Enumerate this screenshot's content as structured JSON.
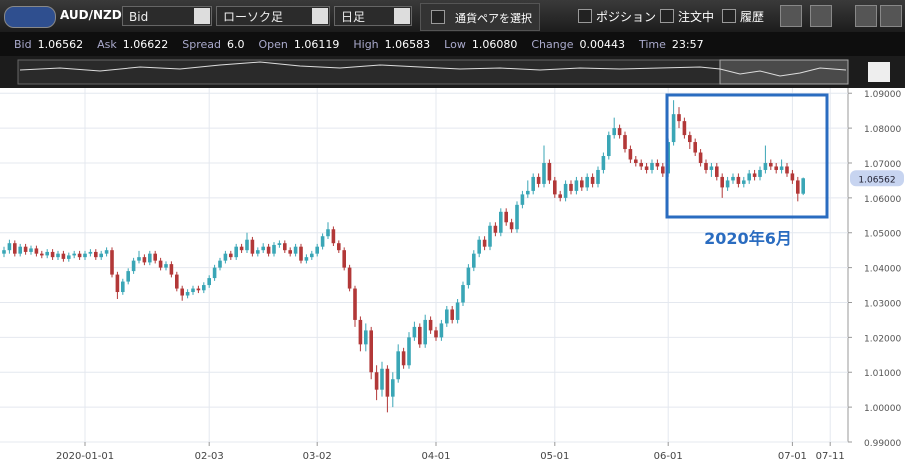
{
  "toolbar": {
    "symbol": "AUD/NZD",
    "price_side": "Bid",
    "chart_kind": "ローソク足",
    "period": "日足",
    "select_pair": "通貨ペアを選択",
    "positions": "ポジション",
    "orders": "注文中",
    "history": "履歴"
  },
  "info": [
    {
      "label": "Bid",
      "value": "1.06562"
    },
    {
      "label": "Ask",
      "value": "1.06622"
    },
    {
      "label": "Spread",
      "value": "6.0"
    },
    {
      "label": "Open",
      "value": "1.06119"
    },
    {
      "label": "High",
      "value": "1.06583"
    },
    {
      "label": "Low",
      "value": "1.06080"
    },
    {
      "label": "Change",
      "value": "0.00443"
    },
    {
      "label": "Time",
      "value": "23:57"
    }
  ],
  "chart_data": {
    "type": "candlestick",
    "annotation": "2020年6月",
    "categories": [
      null,
      null,
      null,
      null,
      null,
      null,
      null,
      null,
      null,
      null,
      null,
      null,
      null,
      null,
      null,
      "2020-01-01",
      null,
      null,
      null,
      null,
      null,
      null,
      null,
      null,
      null,
      null,
      null,
      null,
      null,
      null,
      null,
      null,
      null,
      null,
      null,
      null,
      null,
      null,
      "02-03",
      null,
      null,
      null,
      null,
      null,
      null,
      null,
      null,
      null,
      null,
      null,
      null,
      null,
      null,
      null,
      null,
      null,
      null,
      null,
      "03-02",
      null,
      null,
      null,
      null,
      null,
      null,
      null,
      null,
      null,
      null,
      null,
      null,
      null,
      null,
      null,
      null,
      null,
      null,
      null,
      null,
      null,
      "04-01",
      null,
      null,
      null,
      null,
      null,
      null,
      null,
      null,
      null,
      null,
      null,
      null,
      null,
      null,
      null,
      null,
      null,
      null,
      null,
      null,
      null,
      "05-01",
      null,
      null,
      null,
      null,
      null,
      null,
      null,
      null,
      null,
      null,
      null,
      null,
      null,
      null,
      null,
      null,
      null,
      null,
      null,
      null,
      "06-01",
      null,
      null,
      null,
      null,
      null,
      null,
      null,
      null,
      null,
      null,
      null,
      null,
      null,
      null,
      null,
      null,
      null,
      null,
      null,
      null,
      null,
      null,
      "07-01",
      null,
      null,
      null,
      null,
      null,
      null,
      "07-11"
    ],
    "open": [
      1.044,
      1.045,
      1.047,
      1.044,
      1.046,
      1.0445,
      1.0455,
      1.044,
      1.0435,
      1.0445,
      1.043,
      1.044,
      1.0425,
      1.0435,
      1.044,
      1.043,
      1.044,
      1.0445,
      1.043,
      1.044,
      1.045,
      1.038,
      1.033,
      1.036,
      1.039,
      1.042,
      1.043,
      1.0415,
      1.044,
      1.042,
      1.04,
      1.041,
      1.038,
      1.034,
      1.032,
      1.033,
      1.034,
      1.0335,
      1.035,
      1.037,
      1.04,
      1.042,
      1.044,
      1.043,
      1.046,
      1.045,
      1.048,
      1.044,
      1.045,
      1.046,
      1.044,
      1.0465,
      1.047,
      1.045,
      1.044,
      1.046,
      1.042,
      1.043,
      1.044,
      1.046,
      1.049,
      1.051,
      1.047,
      1.045,
      1.04,
      1.034,
      1.025,
      1.018,
      1.022,
      1.01,
      1.005,
      1.011,
      1.003,
      1.008,
      1.016,
      1.012,
      1.02,
      1.023,
      1.018,
      1.025,
      1.022,
      1.02,
      1.024,
      1.028,
      1.025,
      1.03,
      1.035,
      1.04,
      1.044,
      1.048,
      1.046,
      1.052,
      1.05,
      1.056,
      1.053,
      1.051,
      1.058,
      1.061,
      1.062,
      1.066,
      1.064,
      1.07,
      1.065,
      1.061,
      1.06,
      1.064,
      1.062,
      1.065,
      1.063,
      1.066,
      1.064,
      1.068,
      1.072,
      1.078,
      1.08,
      1.078,
      1.074,
      1.071,
      1.07,
      1.069,
      1.068,
      1.07,
      1.069,
      1.067,
      1.076,
      1.084,
      1.082,
      1.078,
      1.076,
      1.073,
      1.07,
      1.068,
      1.069,
      1.066,
      1.063,
      1.065,
      1.066,
      1.064,
      1.065,
      1.067,
      1.066,
      1.068,
      1.07,
      1.069,
      1.068,
      1.069,
      1.067,
      1.065,
      1.06119,
      null,
      null,
      null,
      null,
      null
    ],
    "high": [
      1.046,
      1.048,
      1.0478,
      1.0468,
      1.0468,
      1.0463,
      1.0463,
      1.0448,
      1.0453,
      1.0453,
      1.0448,
      1.0448,
      1.0443,
      1.0448,
      1.0448,
      1.0448,
      1.0453,
      1.0453,
      1.0448,
      1.0458,
      1.0458,
      1.0388,
      1.0368,
      1.0398,
      1.0428,
      1.0448,
      1.0438,
      1.0448,
      1.0448,
      1.0428,
      1.0418,
      1.0418,
      1.0388,
      1.0348,
      1.0338,
      1.0348,
      1.0348,
      1.0358,
      1.0378,
      1.0408,
      1.0428,
      1.0448,
      1.0448,
      1.0468,
      1.0468,
      1.05,
      1.0488,
      1.0458,
      1.047,
      1.0468,
      1.0473,
      1.0478,
      1.0478,
      1.0458,
      1.0468,
      1.0468,
      1.0438,
      1.0448,
      1.0468,
      1.0498,
      1.053,
      1.0518,
      1.0478,
      1.0458,
      1.0408,
      1.0348,
      1.026,
      1.024,
      1.023,
      1.012,
      1.013,
      1.012,
      1.01,
      1.018,
      1.017,
      1.0215,
      1.0245,
      1.024,
      1.0265,
      1.026,
      1.023,
      1.025,
      1.029,
      1.029,
      1.031,
      1.036,
      1.041,
      1.045,
      1.049,
      1.049,
      1.053,
      1.053,
      1.057,
      1.057,
      1.054,
      1.059,
      1.062,
      1.065,
      1.067,
      1.067,
      1.075,
      1.071,
      1.066,
      1.062,
      1.065,
      1.065,
      1.066,
      1.066,
      1.067,
      1.067,
      1.069,
      1.073,
      1.079,
      1.083,
      1.081,
      1.079,
      1.075,
      1.072,
      1.071,
      1.07,
      1.071,
      1.071,
      1.07,
      1.077,
      1.088,
      1.086,
      1.083,
      1.079,
      1.077,
      1.074,
      1.071,
      1.07,
      1.07,
      1.067,
      1.066,
      1.067,
      1.067,
      1.066,
      1.068,
      1.068,
      1.069,
      1.075,
      1.071,
      1.07,
      1.071,
      1.07,
      1.068,
      1.066,
      1.06583,
      null,
      null,
      null,
      null,
      null
    ],
    "low": [
      1.043,
      1.044,
      1.0432,
      1.0432,
      1.0437,
      1.0437,
      1.0432,
      1.0427,
      1.0427,
      1.0422,
      1.0422,
      1.0417,
      1.0417,
      1.0427,
      1.0422,
      1.0422,
      1.0432,
      1.0422,
      1.0422,
      1.0432,
      1.0372,
      1.031,
      1.0322,
      1.0352,
      1.0382,
      1.0412,
      1.0407,
      1.0407,
      1.0412,
      1.0392,
      1.0392,
      1.0372,
      1.0332,
      1.0305,
      1.0312,
      1.0322,
      1.0327,
      1.0327,
      1.0342,
      1.0362,
      1.0392,
      1.0412,
      1.0422,
      1.0422,
      1.0442,
      1.0442,
      1.0432,
      1.0432,
      1.0442,
      1.0432,
      1.0432,
      1.0457,
      1.0442,
      1.0432,
      1.0432,
      1.0412,
      1.0412,
      1.0422,
      1.0432,
      1.0452,
      1.0482,
      1.0462,
      1.0442,
      1.0392,
      1.0332,
      1.023,
      1.016,
      1.016,
      1.008,
      1.002,
      1.003,
      0.9985,
      1.0,
      1.007,
      1.011,
      1.011,
      1.019,
      1.017,
      1.017,
      1.021,
      1.019,
      1.019,
      1.023,
      1.024,
      1.024,
      1.029,
      1.034,
      1.039,
      1.043,
      1.045,
      1.045,
      1.049,
      1.049,
      1.052,
      1.05,
      1.05,
      1.057,
      1.06,
      1.061,
      1.063,
      1.063,
      1.064,
      1.06,
      1.059,
      1.059,
      1.061,
      1.061,
      1.062,
      1.062,
      1.063,
      1.063,
      1.067,
      1.071,
      1.077,
      1.077,
      1.073,
      1.07,
      1.069,
      1.068,
      1.067,
      1.067,
      1.068,
      1.066,
      1.066,
      1.075,
      1.08,
      1.077,
      1.074,
      1.072,
      1.069,
      1.067,
      1.066,
      1.065,
      1.06,
      1.062,
      1.064,
      1.063,
      1.063,
      1.064,
      1.065,
      1.065,
      1.067,
      1.068,
      1.067,
      1.067,
      1.066,
      1.064,
      1.059,
      1.0608,
      null,
      null,
      null,
      null,
      null
    ],
    "close": [
      1.045,
      1.047,
      1.044,
      1.046,
      1.0445,
      1.0455,
      1.044,
      1.0435,
      1.0445,
      1.043,
      1.044,
      1.0425,
      1.0435,
      1.044,
      1.043,
      1.044,
      1.0445,
      1.043,
      1.044,
      1.045,
      1.038,
      1.033,
      1.036,
      1.039,
      1.042,
      1.043,
      1.0415,
      1.044,
      1.042,
      1.04,
      1.041,
      1.038,
      1.034,
      1.032,
      1.033,
      1.034,
      1.0335,
      1.035,
      1.037,
      1.04,
      1.042,
      1.044,
      1.043,
      1.046,
      1.045,
      1.048,
      1.044,
      1.045,
      1.046,
      1.044,
      1.0465,
      1.047,
      1.045,
      1.044,
      1.046,
      1.042,
      1.043,
      1.044,
      1.046,
      1.049,
      1.051,
      1.047,
      1.045,
      1.04,
      1.034,
      1.025,
      1.018,
      1.022,
      1.01,
      1.005,
      1.011,
      1.003,
      1.008,
      1.016,
      1.012,
      1.02,
      1.023,
      1.018,
      1.025,
      1.022,
      1.02,
      1.024,
      1.028,
      1.025,
      1.03,
      1.035,
      1.04,
      1.044,
      1.048,
      1.046,
      1.052,
      1.05,
      1.056,
      1.053,
      1.051,
      1.058,
      1.061,
      1.062,
      1.066,
      1.064,
      1.07,
      1.065,
      1.061,
      1.06,
      1.064,
      1.062,
      1.065,
      1.063,
      1.066,
      1.064,
      1.068,
      1.072,
      1.078,
      1.08,
      1.078,
      1.074,
      1.071,
      1.07,
      1.069,
      1.068,
      1.07,
      1.069,
      1.067,
      1.076,
      1.084,
      1.082,
      1.078,
      1.076,
      1.073,
      1.07,
      1.068,
      1.069,
      1.066,
      1.063,
      1.065,
      1.066,
      1.064,
      1.065,
      1.067,
      1.066,
      1.068,
      1.07,
      1.069,
      1.068,
      1.069,
      1.067,
      1.065,
      1.0612,
      1.06562,
      null,
      null,
      null,
      null,
      null
    ],
    "up_color": "#3aa6b6",
    "down_color": "#b23838",
    "ylim": [
      0.99,
      1.0915
    ],
    "yticks": [
      {
        "value": 0.99,
        "label": "0.99000"
      },
      {
        "value": 1.0,
        "label": "1.00000"
      },
      {
        "value": 1.01,
        "label": "1.01000"
      },
      {
        "value": 1.02,
        "label": "1.02000"
      },
      {
        "value": 1.03,
        "label": "1.03000"
      },
      {
        "value": 1.04,
        "label": "1.04000"
      },
      {
        "value": 1.05,
        "label": "1.05000"
      },
      {
        "value": 1.06,
        "label": "1.06000"
      },
      {
        "value": 1.07,
        "label": "1.07000"
      },
      {
        "value": 1.08,
        "label": "1.08000"
      },
      {
        "value": 1.09,
        "label": "1.09000"
      }
    ],
    "grid": true
  }
}
